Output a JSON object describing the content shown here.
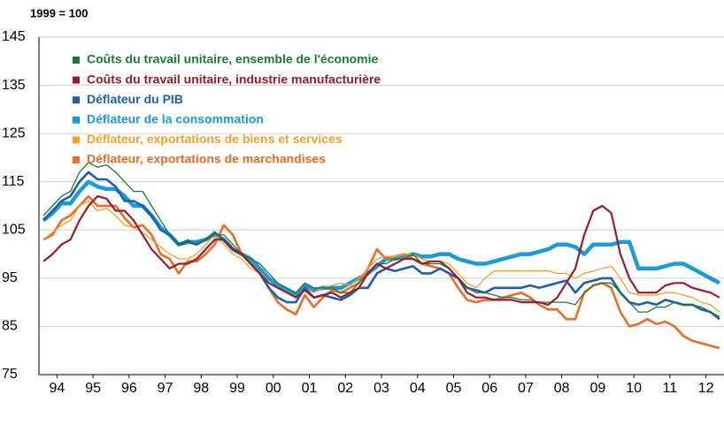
{
  "chart_data": {
    "type": "line",
    "subtitle": "1999 = 100",
    "x": [
      1994.125,
      1994.375,
      1994.625,
      1994.875,
      1995.125,
      1995.375,
      1995.625,
      1995.875,
      1996.125,
      1996.375,
      1996.625,
      1996.875,
      1997.125,
      1997.375,
      1997.625,
      1997.875,
      1998.125,
      1998.375,
      1998.625,
      1998.875,
      1999.125,
      1999.375,
      1999.625,
      1999.875,
      2000.125,
      2000.375,
      2000.625,
      2000.875,
      2001.125,
      2001.375,
      2001.625,
      2001.875,
      2002.125,
      2002.375,
      2002.625,
      2002.875,
      2003.125,
      2003.375,
      2003.625,
      2003.875,
      2004.125,
      2004.375,
      2004.625,
      2004.875,
      2005.125,
      2005.375,
      2005.625,
      2005.875,
      2006.125,
      2006.375,
      2006.625,
      2006.875,
      2007.125,
      2007.375,
      2007.625,
      2007.875,
      2008.125,
      2008.375,
      2008.625,
      2008.875,
      2009.125,
      2009.375,
      2009.625,
      2009.875,
      2010.125,
      2010.375,
      2010.625,
      2010.875,
      2011.125,
      2011.375,
      2011.625,
      2011.875,
      2012.125,
      2012.375,
      2012.625,
      2012.875
    ],
    "xlim": [
      1994,
      2013
    ],
    "xticks": [
      {
        "value": 1994.5,
        "label": "94"
      },
      {
        "value": 1995.5,
        "label": "95"
      },
      {
        "value": 1996.5,
        "label": "96"
      },
      {
        "value": 1997.5,
        "label": "97"
      },
      {
        "value": 1998.5,
        "label": "98"
      },
      {
        "value": 1999.5,
        "label": "99"
      },
      {
        "value": 2000.5,
        "label": "00"
      },
      {
        "value": 2001.5,
        "label": "01"
      },
      {
        "value": 2002.5,
        "label": "02"
      },
      {
        "value": 2003.5,
        "label": "03"
      },
      {
        "value": 2004.5,
        "label": "04"
      },
      {
        "value": 2005.5,
        "label": "05"
      },
      {
        "value": 2006.5,
        "label": "06"
      },
      {
        "value": 2007.5,
        "label": "07"
      },
      {
        "value": 2008.5,
        "label": "08"
      },
      {
        "value": 2009.5,
        "label": "09"
      },
      {
        "value": 2010.5,
        "label": "10"
      },
      {
        "value": 2011.5,
        "label": "11"
      },
      {
        "value": 2012.5,
        "label": "12"
      }
    ],
    "ylim": [
      75,
      145
    ],
    "yticks": [
      75,
      85,
      95,
      105,
      115,
      125,
      135,
      145
    ],
    "grid": true,
    "legend": "top-left",
    "series": [
      {
        "name": "Coûts du travail unitaire, ensemble de l'économie",
        "color": "#1a7a3a",
        "values": [
          108,
          110,
          112,
          113,
          117,
          119,
          118,
          118.5,
          117,
          115,
          113,
          113,
          110,
          107,
          104,
          102,
          103,
          102,
          103,
          104,
          104,
          102,
          100,
          99,
          98,
          96,
          94,
          93,
          92,
          94,
          93,
          93,
          93,
          92,
          92,
          94,
          96,
          98,
          98,
          99,
          99,
          100,
          98,
          98,
          98,
          97,
          95,
          93,
          92,
          92,
          91.5,
          91,
          91,
          90.5,
          90.5,
          90,
          90,
          90,
          90,
          89.5,
          92,
          93.5,
          94,
          94,
          92,
          90,
          88,
          88,
          89,
          89,
          90,
          89.5,
          89.5,
          89,
          88,
          87
        ]
      },
      {
        "name": "Coûts du travail unitaire, industrie manufacturière",
        "color": "#9b1b2a",
        "values": [
          98.5,
          100,
          102,
          103,
          107,
          110,
          112,
          111.5,
          109,
          109,
          107,
          104,
          101,
          99,
          97,
          98,
          98,
          99,
          101,
          103,
          103,
          101,
          100,
          98,
          96,
          94,
          93,
          92,
          91,
          92.5,
          91,
          91.5,
          92,
          91,
          92,
          93,
          96,
          98,
          97,
          98,
          99,
          99,
          98,
          98.5,
          98.5,
          97,
          95,
          92,
          91,
          91,
          90.5,
          90.5,
          90.5,
          90,
          90,
          90,
          89.5,
          91,
          94,
          97,
          104,
          109,
          110,
          108.5,
          100,
          95,
          92,
          92,
          92,
          93.5,
          94,
          94,
          93,
          92.5,
          92,
          91
        ]
      },
      {
        "name": "Déflateur du PIB",
        "color": "#1f5ea8",
        "values": [
          107,
          109,
          111,
          112,
          115,
          117,
          115.5,
          115.5,
          114,
          111,
          111,
          110,
          108,
          105,
          104,
          102,
          102.5,
          102,
          103,
          104.5,
          103,
          101,
          100,
          98,
          96,
          93,
          91,
          90,
          90,
          93,
          91,
          91.5,
          91,
          90.5,
          91.5,
          93,
          93,
          96,
          97,
          96.5,
          97,
          97.5,
          96,
          96,
          97,
          96,
          95,
          93,
          92.5,
          92,
          93,
          93,
          93,
          93,
          93.5,
          93,
          93.5,
          94,
          94.5,
          92,
          94,
          94.5,
          95,
          95,
          92,
          90,
          89.5,
          90,
          89.5,
          90.5,
          90,
          89.5,
          89.5,
          88.5,
          88,
          86.5
        ]
      },
      {
        "name": "Déflateur de la consommation",
        "color": "#1a9ad6",
        "values": [
          107,
          108.5,
          110.5,
          110.5,
          113,
          115,
          114,
          113.5,
          113.5,
          112,
          110,
          110,
          108,
          105.5,
          104,
          102,
          102.5,
          102.5,
          103,
          104,
          103,
          101,
          100,
          99,
          97,
          95,
          93.5,
          92.5,
          91.5,
          93.5,
          92.5,
          93,
          93,
          93,
          94,
          95,
          96,
          97.5,
          99,
          99,
          99.5,
          100,
          99.5,
          99.5,
          100,
          100,
          99,
          98.5,
          98,
          98,
          98.5,
          99,
          99.5,
          100,
          100,
          100.5,
          101,
          102,
          102,
          101.5,
          100,
          102,
          102,
          102,
          102.5,
          102.5,
          97,
          97,
          97,
          97.5,
          98,
          98,
          97,
          96,
          95,
          94
        ]
      },
      {
        "name": "Déflateur, exportations de biens et services",
        "color": "#f4a028",
        "values": [
          103,
          104.5,
          106,
          107,
          110,
          111,
          109,
          109.5,
          108,
          106,
          105.5,
          104.5,
          103,
          101.5,
          100,
          99,
          99,
          100,
          102,
          104,
          102,
          100,
          99,
          97,
          96,
          94,
          93,
          92,
          91,
          93,
          92,
          93,
          93.5,
          94,
          93.5,
          95,
          97,
          99,
          99.5,
          99.5,
          100,
          100,
          99,
          98.5,
          98.5,
          98,
          96,
          94,
          93,
          95,
          96.5,
          96.5,
          96.5,
          96.5,
          96.5,
          96.5,
          96.5,
          96,
          96,
          95,
          96,
          96.5,
          97,
          97.5,
          95,
          92,
          91.5,
          91.5,
          91.5,
          92,
          92,
          91.5,
          91,
          90,
          89.5,
          88
        ]
      },
      {
        "name": "Déflateur, exportations de marchandises",
        "color": "#ec6b27",
        "values": [
          103,
          104,
          107,
          108,
          110,
          112,
          110,
          110,
          110,
          107.5,
          105.5,
          106,
          104,
          100,
          99,
          96,
          98.5,
          98.5,
          100,
          102,
          106,
          104,
          100,
          98,
          96,
          93,
          90,
          88.5,
          87.5,
          91.5,
          89,
          91,
          92.5,
          92,
          93,
          94,
          97,
          101,
          99,
          99.5,
          100,
          99,
          98,
          97.5,
          97,
          96,
          93,
          90.5,
          90,
          90.5,
          90.5,
          91,
          91.5,
          92,
          91,
          89.5,
          88.5,
          88.5,
          86.5,
          86.5,
          92,
          93.5,
          94,
          93,
          88,
          85,
          85.5,
          86.5,
          85.5,
          86,
          85,
          83,
          82,
          81.5,
          81,
          80.5
        ]
      }
    ]
  }
}
